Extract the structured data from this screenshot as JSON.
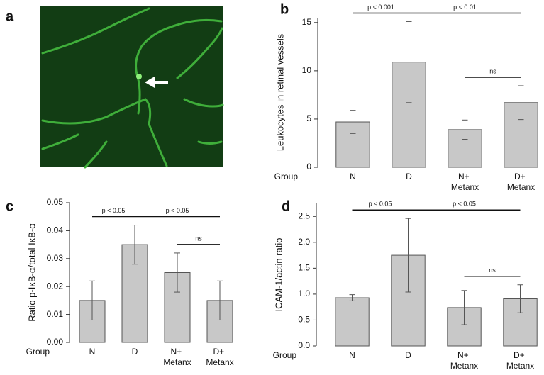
{
  "image_panel": {
    "label": "a"
  },
  "chart_data": [
    {
      "type": "bar",
      "panel": "b",
      "ylabel": "Leukocytes in retinal vessels",
      "xlabel": "Group",
      "categories": [
        "N",
        "D",
        "N+ Metanx",
        "D+ Metanx"
      ],
      "values": [
        4.7,
        10.9,
        3.9,
        6.7
      ],
      "errors": [
        1.2,
        4.2,
        1.0,
        1.75
      ],
      "color": "#c8c8c8",
      "ylim": [
        0,
        15.5
      ],
      "yticks": [
        0,
        5,
        10,
        15
      ],
      "annotations": [
        {
          "text": "p < 0.001",
          "from": 0,
          "to": 1
        },
        {
          "text": "p < 0.01",
          "from": 1,
          "to": 3
        },
        {
          "text": "ns",
          "from": 2,
          "to": 3
        }
      ]
    },
    {
      "type": "bar",
      "panel": "c",
      "ylabel": "Ratio p-IκB-α/total IκB-α",
      "xlabel": "Group",
      "categories": [
        "N",
        "D",
        "N+ Metanx",
        "D+ Metanx"
      ],
      "values": [
        0.015,
        0.035,
        0.025,
        0.015
      ],
      "errors": [
        0.007,
        0.007,
        0.007,
        0.007
      ],
      "color": "#c8c8c8",
      "ylim": [
        0,
        0.05
      ],
      "yticks": [
        {
          "value": 0,
          "label": "0.00"
        },
        0.01,
        0.02,
        0.03,
        0.04,
        0.05
      ],
      "annotations": [
        {
          "text": "p < 0.05",
          "from": 0,
          "to": 1
        },
        {
          "text": "p < 0.05",
          "from": 1,
          "to": 3
        },
        {
          "text": "ns",
          "from": 2,
          "to": 3
        }
      ]
    },
    {
      "type": "bar",
      "panel": "d",
      "ylabel": "ICAM-1/actin ratio",
      "xlabel": "Group",
      "categories": [
        "N",
        "D",
        "N+ Metanx",
        "D+ Metanx"
      ],
      "values": [
        0.93,
        1.75,
        0.74,
        0.91
      ],
      "errors": [
        0.06,
        0.71,
        0.33,
        0.27
      ],
      "color": "#c8c8c8",
      "ylim": [
        0,
        2.75
      ],
      "yticks": [
        {
          "value": 0,
          "label": "0.0"
        },
        0.5,
        {
          "value": 1,
          "label": "1.0"
        },
        1.5,
        {
          "value": 2,
          "label": "2.0"
        },
        2.5
      ],
      "annotations": [
        {
          "text": "p < 0.05",
          "from": 0,
          "to": 1
        },
        {
          "text": "p < 0.05",
          "from": 1,
          "to": 3
        },
        {
          "text": "ns",
          "from": 2,
          "to": 3
        }
      ]
    }
  ]
}
